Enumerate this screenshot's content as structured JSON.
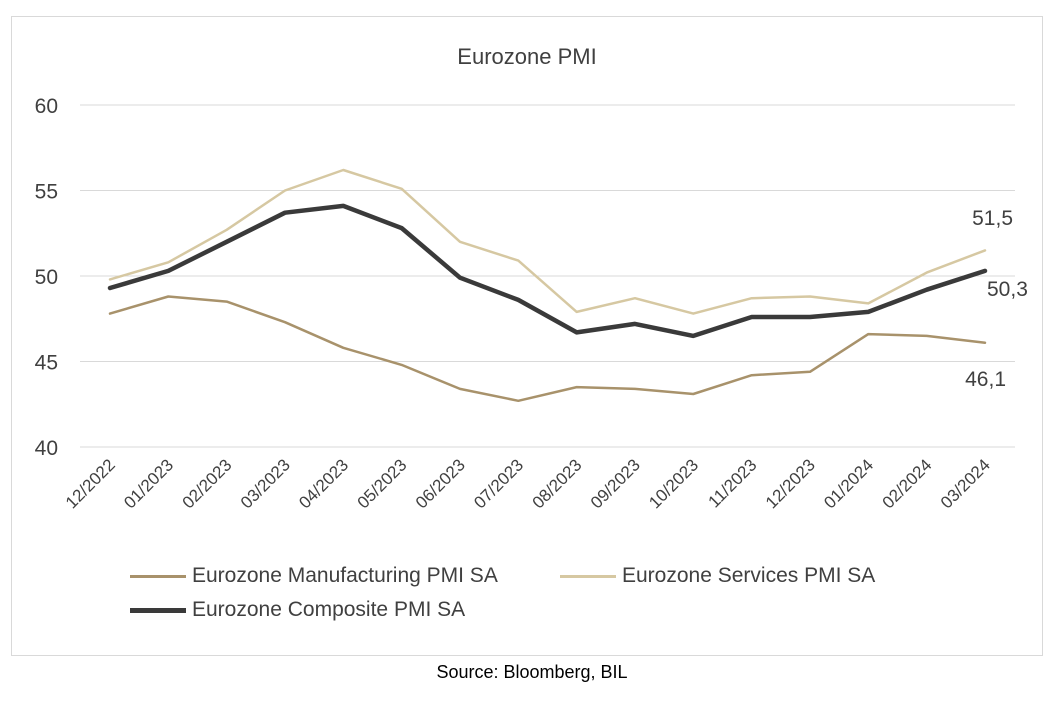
{
  "source": "Source: Bloomberg, BIL",
  "chart_data": {
    "type": "line",
    "title": "Eurozone PMI",
    "xlabel": "",
    "ylabel": "",
    "categories": [
      "12/2022",
      "01/2023",
      "02/2023",
      "03/2023",
      "04/2023",
      "05/2023",
      "06/2023",
      "07/2023",
      "08/2023",
      "09/2023",
      "10/2023",
      "11/2023",
      "12/2023",
      "01/2024",
      "02/2024",
      "03/2024"
    ],
    "ylim": [
      40,
      60
    ],
    "yticks": [
      "40",
      "45",
      "50",
      "55",
      "60"
    ],
    "grid": true,
    "legend_position": "bottom",
    "series": [
      {
        "name": "Eurozone Manufacturing PMI SA",
        "color": "#a8926b",
        "width": 2.5,
        "values": [
          47.8,
          48.8,
          48.5,
          47.3,
          45.8,
          44.8,
          43.4,
          42.7,
          43.5,
          43.4,
          43.1,
          44.2,
          44.4,
          46.6,
          46.5,
          46.1
        ]
      },
      {
        "name": "Eurozone Services PMI SA",
        "color": "#d6c8a2",
        "width": 2.5,
        "values": [
          49.8,
          50.8,
          52.7,
          55.0,
          56.2,
          55.1,
          52.0,
          50.9,
          47.9,
          48.7,
          47.8,
          48.7,
          48.8,
          48.4,
          50.2,
          51.5
        ]
      },
      {
        "name": "Eurozone Composite PMI SA",
        "color": "#3a3a3a",
        "width": 4.5,
        "values": [
          49.3,
          50.3,
          52.0,
          53.7,
          54.1,
          52.8,
          49.9,
          48.6,
          46.7,
          47.2,
          46.5,
          47.6,
          47.6,
          47.9,
          49.2,
          50.3
        ]
      }
    ],
    "annotations": [
      "51,5",
      "50,3",
      "46,1"
    ]
  }
}
